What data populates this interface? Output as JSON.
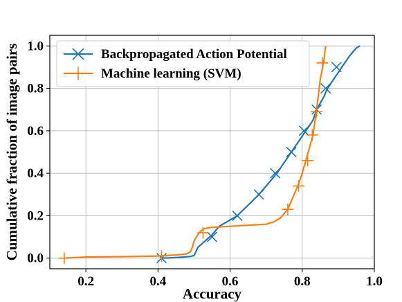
{
  "chart_data": {
    "type": "line",
    "xlabel": "Accuracy",
    "ylabel": "Cumulative fraction of image pairs",
    "xlim": [
      0.1,
      1.0
    ],
    "ylim": [
      -0.05,
      1.05
    ],
    "x_ticks": [
      0.2,
      0.4,
      0.6,
      0.8,
      1.0
    ],
    "x_tick_labels": [
      "0.2",
      "0.4",
      "0.6",
      "0.8",
      "1.0"
    ],
    "y_ticks": [
      0.0,
      0.2,
      0.4,
      0.6,
      0.8,
      1.0
    ],
    "y_tick_labels": [
      "0.0",
      "0.2",
      "0.4",
      "0.6",
      "0.8",
      "1.0"
    ],
    "grid": true,
    "legend_position": "top-left",
    "series": [
      {
        "name": "Backpropagated Action Potential",
        "color": "#1f77b4",
        "marker": "x",
        "x": [
          0.41,
          0.44,
          0.47,
          0.49,
          0.5,
          0.505,
          0.51,
          0.53,
          0.55,
          0.57,
          0.6,
          0.62,
          0.65,
          0.68,
          0.7,
          0.73,
          0.75,
          0.77,
          0.79,
          0.81,
          0.83,
          0.84,
          0.86,
          0.87,
          0.89,
          0.91,
          0.93,
          0.95,
          0.96
        ],
        "y": [
          0.0,
          0.002,
          0.005,
          0.008,
          0.012,
          0.03,
          0.05,
          0.08,
          0.11,
          0.15,
          0.18,
          0.2,
          0.25,
          0.3,
          0.34,
          0.4,
          0.45,
          0.5,
          0.55,
          0.6,
          0.65,
          0.7,
          0.76,
          0.8,
          0.85,
          0.9,
          0.95,
          0.99,
          1.0
        ],
        "marker_x": [
          0.41,
          0.55,
          0.62,
          0.68,
          0.725,
          0.77,
          0.805,
          0.84,
          0.865,
          0.895
        ],
        "marker_y": [
          0.0,
          0.1,
          0.2,
          0.3,
          0.4,
          0.5,
          0.6,
          0.7,
          0.8,
          0.9
        ]
      },
      {
        "name": "Machine learning (SVM)",
        "color": "#ff7f0e",
        "marker": "+",
        "x": [
          0.14,
          0.2,
          0.3,
          0.4,
          0.45,
          0.48,
          0.49,
          0.495,
          0.5,
          0.51,
          0.52,
          0.53,
          0.55,
          0.6,
          0.65,
          0.7,
          0.72,
          0.74,
          0.76,
          0.77,
          0.78,
          0.79,
          0.8,
          0.81,
          0.82,
          0.83,
          0.84,
          0.85,
          0.86,
          0.865
        ],
        "y": [
          0.0,
          0.005,
          0.007,
          0.01,
          0.015,
          0.02,
          0.03,
          0.05,
          0.08,
          0.11,
          0.13,
          0.14,
          0.145,
          0.15,
          0.155,
          0.16,
          0.17,
          0.19,
          0.23,
          0.27,
          0.31,
          0.35,
          0.4,
          0.46,
          0.52,
          0.58,
          0.7,
          0.84,
          0.93,
          1.0
        ],
        "marker_x": [
          0.14,
          0.41,
          0.525,
          0.76,
          0.79,
          0.815,
          0.828,
          0.84,
          0.856
        ],
        "marker_y": [
          0.0,
          0.01,
          0.12,
          0.23,
          0.34,
          0.46,
          0.58,
          0.69,
          0.92
        ]
      }
    ]
  }
}
